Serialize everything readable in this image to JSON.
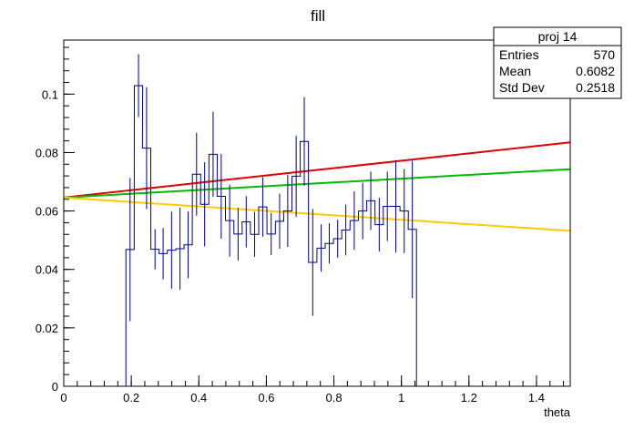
{
  "chart_data": {
    "type": "histogram",
    "title": "fill",
    "xlabel": "theta",
    "ylabel": "",
    "xlim": [
      0,
      1.5
    ],
    "ylim": [
      0,
      0.1185
    ],
    "x_ticks": [
      0,
      0.2,
      0.4,
      0.6,
      0.8,
      1,
      1.2,
      1.4
    ],
    "x_tick_labels": [
      "0",
      "0.2",
      "0.4",
      "0.6",
      "0.8",
      "1",
      "1.2",
      "1.4"
    ],
    "y_ticks": [
      0,
      0.02,
      0.04,
      0.06,
      0.08,
      0.1
    ],
    "y_tick_labels": [
      "0",
      "0.02",
      "0.04",
      "0.06",
      "0.08",
      "0.1"
    ],
    "grid": false,
    "stats_box": {
      "title": "proj 14",
      "rows": [
        {
          "label": "Entries",
          "value": "570"
        },
        {
          "label": "Mean",
          "value": "0.6082"
        },
        {
          "label": "Std Dev",
          "value": "0.2518"
        }
      ]
    },
    "histogram": {
      "name": "proj 14",
      "color": "#000080",
      "bin_width": 0.0246,
      "bins": [
        {
          "x_low": 0.184,
          "y": 0.0468,
          "err": 0.0245
        },
        {
          "x_low": 0.209,
          "y": 0.1029,
          "err": 0.0108
        },
        {
          "x_low": 0.233,
          "y": 0.0815,
          "err": 0.0209
        },
        {
          "x_low": 0.258,
          "y": 0.0469,
          "err": 0.0069
        },
        {
          "x_low": 0.282,
          "y": 0.0454,
          "err": 0.0088
        },
        {
          "x_low": 0.307,
          "y": 0.0466,
          "err": 0.0132
        },
        {
          "x_low": 0.332,
          "y": 0.0471,
          "err": 0.014
        },
        {
          "x_low": 0.356,
          "y": 0.0484,
          "err": 0.0114
        },
        {
          "x_low": 0.381,
          "y": 0.0726,
          "err": 0.0142
        },
        {
          "x_low": 0.405,
          "y": 0.0623,
          "err": 0.0144
        },
        {
          "x_low": 0.43,
          "y": 0.0794,
          "err": 0.0146
        },
        {
          "x_low": 0.454,
          "y": 0.065,
          "err": 0.0145
        },
        {
          "x_low": 0.479,
          "y": 0.0567,
          "err": 0.0123
        },
        {
          "x_low": 0.504,
          "y": 0.0521,
          "err": 0.009
        },
        {
          "x_low": 0.528,
          "y": 0.0563,
          "err": 0.0088
        },
        {
          "x_low": 0.553,
          "y": 0.052,
          "err": 0.0077
        },
        {
          "x_low": 0.577,
          "y": 0.0614,
          "err": 0.0102
        },
        {
          "x_low": 0.602,
          "y": 0.0521,
          "err": 0.0072
        },
        {
          "x_low": 0.627,
          "y": 0.0565,
          "err": 0.0094
        },
        {
          "x_low": 0.651,
          "y": 0.06,
          "err": 0.0123
        },
        {
          "x_low": 0.676,
          "y": 0.0719,
          "err": 0.0139
        },
        {
          "x_low": 0.7,
          "y": 0.0838,
          "err": 0.0152
        },
        {
          "x_low": 0.725,
          "y": 0.0424,
          "err": 0.0183
        },
        {
          "x_low": 0.75,
          "y": 0.0473,
          "err": 0.0081
        },
        {
          "x_low": 0.774,
          "y": 0.0489,
          "err": 0.0069
        },
        {
          "x_low": 0.799,
          "y": 0.0505,
          "err": 0.0065
        },
        {
          "x_low": 0.823,
          "y": 0.0535,
          "err": 0.0087
        },
        {
          "x_low": 0.848,
          "y": 0.0567,
          "err": 0.01
        },
        {
          "x_low": 0.873,
          "y": 0.06,
          "err": 0.0097
        },
        {
          "x_low": 0.897,
          "y": 0.0635,
          "err": 0.01
        },
        {
          "x_low": 0.922,
          "y": 0.0553,
          "err": 0.0092
        },
        {
          "x_low": 0.946,
          "y": 0.0616,
          "err": 0.0119
        },
        {
          "x_low": 0.971,
          "y": 0.0616,
          "err": 0.0158
        },
        {
          "x_low": 0.996,
          "y": 0.06,
          "err": 0.0144
        },
        {
          "x_low": 1.02,
          "y": 0.0537,
          "err": 0.0235
        }
      ]
    },
    "lines": [
      {
        "color": "#dd0000",
        "x": [
          0,
          1.5
        ],
        "y": [
          0.0646,
          0.0835
        ]
      },
      {
        "color": "#00bb00",
        "x": [
          0,
          1.5
        ],
        "y": [
          0.0646,
          0.0743
        ]
      },
      {
        "color": "#ffcc00",
        "x": [
          0,
          1.5
        ],
        "y": [
          0.0646,
          0.0532
        ]
      }
    ]
  }
}
